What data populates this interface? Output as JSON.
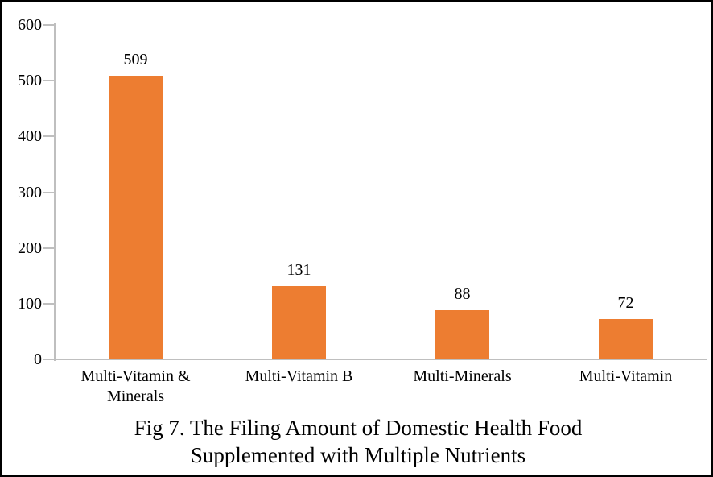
{
  "figure": {
    "caption": {
      "line1": "Fig 7. The Filing Amount of Domestic Health Food",
      "line2": "Supplemented with Multiple Nutrients"
    }
  },
  "chart_data": {
    "type": "bar",
    "title": "Fig 7. The Filing Amount of Domestic Health Food Supplemented with Multiple Nutrients",
    "title_position": "bottom",
    "categories": [
      "Multi-Vitamin & Minerals",
      "Multi-Vitamin B",
      "Multi-Minerals",
      "Multi-Vitamin"
    ],
    "values": [
      509,
      131,
      88,
      72
    ],
    "data_labels": [
      "509",
      "131",
      "88",
      "72"
    ],
    "xlabel": "",
    "ylabel": "",
    "ylim": [
      0,
      600
    ],
    "yticks": [
      0,
      100,
      200,
      300,
      400,
      500,
      600
    ],
    "grid": false,
    "legend": false,
    "colors": {
      "bar": "#ED7D31",
      "axis": "#BFBFBF",
      "text": "#000000",
      "background": "#FFFFFF",
      "border": "#000000"
    }
  }
}
